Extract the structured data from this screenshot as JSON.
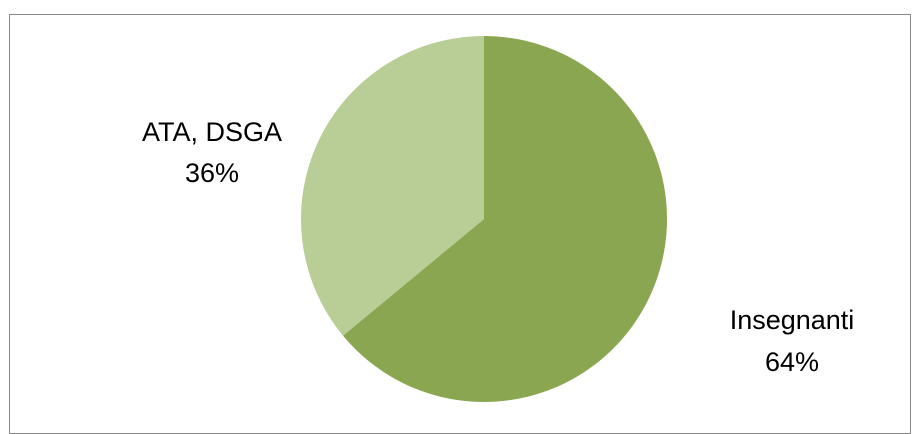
{
  "chart_data": {
    "type": "pie",
    "title": "",
    "slices": [
      {
        "label": "Insegnanti",
        "percent_label": "64%",
        "value": 64,
        "color": "#8aa650"
      },
      {
        "label": "ATA, DSGA",
        "percent_label": "36%",
        "value": 36,
        "color": "#b9cd97"
      }
    ]
  }
}
